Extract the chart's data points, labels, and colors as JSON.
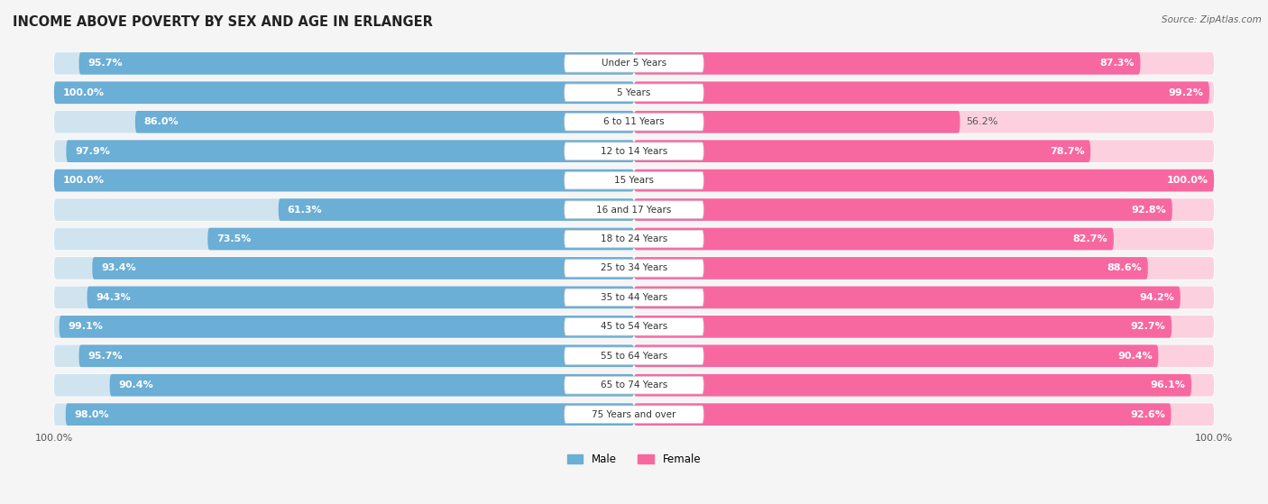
{
  "title": "INCOME ABOVE POVERTY BY SEX AND AGE IN ERLANGER",
  "source": "Source: ZipAtlas.com",
  "categories": [
    "Under 5 Years",
    "5 Years",
    "6 to 11 Years",
    "12 to 14 Years",
    "15 Years",
    "16 and 17 Years",
    "18 to 24 Years",
    "25 to 34 Years",
    "35 to 44 Years",
    "45 to 54 Years",
    "55 to 64 Years",
    "65 to 74 Years",
    "75 Years and over"
  ],
  "male": [
    95.7,
    100.0,
    86.0,
    97.9,
    100.0,
    61.3,
    73.5,
    93.4,
    94.3,
    99.1,
    95.7,
    90.4,
    98.0
  ],
  "female": [
    87.3,
    99.2,
    56.2,
    78.7,
    100.0,
    92.8,
    82.7,
    88.6,
    94.2,
    92.7,
    90.4,
    96.1,
    92.6
  ],
  "male_color": "#6baed6",
  "female_color": "#f768a1",
  "male_bg_color": "#d0e4f0",
  "female_bg_color": "#fcd0df",
  "row_bg_color": "#ebebeb",
  "bg_color": "#f5f5f5",
  "label_bg_color": "#ffffff",
  "title_fontsize": 10.5,
  "bar_label_fontsize": 8.0,
  "cat_label_fontsize": 7.5,
  "tick_fontsize": 8,
  "source_fontsize": 7.5
}
